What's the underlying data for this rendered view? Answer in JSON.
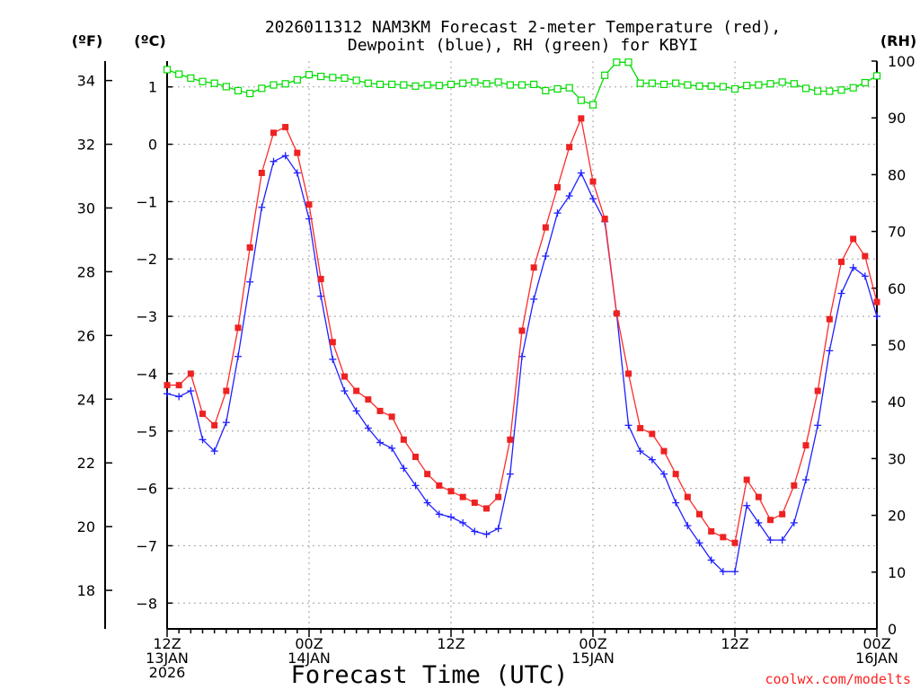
{
  "chart_data": {
    "type": "line",
    "title_line1": "2026011312 NAM3KM Forecast 2-meter Temperature (red),",
    "title_line2": "Dewpoint (blue), RH (green) for KBYI",
    "left_outer_unit": "(ºF)",
    "left_inner_unit": "(ºC)",
    "right_unit": "(RH)",
    "xlabel": "Forecast Time (UTC)",
    "credit": "coolwx.com/modelts",
    "x_hours": {
      "start": 0,
      "end": 60,
      "step": 1
    },
    "x_ticks": [
      {
        "hour": 0,
        "lines": [
          "12Z",
          "13JAN",
          "2026"
        ]
      },
      {
        "hour": 12,
        "lines": [
          "00Z",
          "14JAN"
        ]
      },
      {
        "hour": 24,
        "lines": [
          "12Z"
        ]
      },
      {
        "hour": 36,
        "lines": [
          "00Z",
          "15JAN"
        ]
      },
      {
        "hour": 48,
        "lines": [
          "12Z"
        ]
      },
      {
        "hour": 60,
        "lines": [
          "00Z",
          "16JAN"
        ]
      }
    ],
    "celsius_axis": {
      "min": -8.45,
      "max": 1.45,
      "ticks": [
        1,
        0,
        -1,
        -2,
        -3,
        -4,
        -5,
        -6,
        -7,
        -8
      ]
    },
    "fahrenheit_ticks": [
      34,
      32,
      30,
      28,
      26,
      24,
      22,
      20,
      18
    ],
    "rh_axis": {
      "min": 0,
      "max": 100,
      "ticks": [
        0,
        10,
        20,
        30,
        40,
        50,
        60,
        70,
        80,
        90,
        100
      ]
    },
    "colors": {
      "temperature": "#ff2a2a",
      "temperature_marker": "#ee2222",
      "dewpoint": "#2020ff",
      "rh": "#00dd00",
      "credit": "#ff2020"
    },
    "series": [
      {
        "name": "Temperature (°C)",
        "axis": "celsius",
        "values": [
          -4.2,
          -4.2,
          -4.0,
          -4.7,
          -4.9,
          -4.3,
          -3.2,
          -1.8,
          -0.5,
          0.2,
          0.3,
          -0.15,
          -1.05,
          -2.35,
          -3.45,
          -4.05,
          -4.3,
          -4.45,
          -4.65,
          -4.75,
          -5.15,
          -5.45,
          -5.75,
          -5.95,
          -6.05,
          -6.15,
          -6.25,
          -6.35,
          -6.15,
          -5.15,
          -3.25,
          -2.15,
          -1.45,
          -0.75,
          -0.05,
          0.45,
          -0.65,
          -1.3,
          -2.95,
          -4.0,
          -4.95,
          -5.05,
          -5.35,
          -5.75,
          -6.15,
          -6.45,
          -6.75,
          -6.85,
          -6.95,
          -5.85,
          -6.15,
          -6.55,
          -6.45,
          -5.95,
          -5.25,
          -4.3,
          -3.05,
          -2.05,
          -1.65,
          -1.95,
          -2.75
        ]
      },
      {
        "name": "Dewpoint (°C)",
        "axis": "celsius",
        "values": [
          -4.35,
          -4.4,
          -4.3,
          -5.15,
          -5.35,
          -4.85,
          -3.7,
          -2.4,
          -1.1,
          -0.3,
          -0.2,
          -0.5,
          -1.3,
          -2.65,
          -3.75,
          -4.3,
          -4.65,
          -4.95,
          -5.2,
          -5.3,
          -5.65,
          -5.95,
          -6.25,
          -6.45,
          -6.5,
          -6.6,
          -6.75,
          -6.8,
          -6.7,
          -5.75,
          -3.7,
          -2.7,
          -1.95,
          -1.2,
          -0.9,
          -0.5,
          -0.95,
          -1.35,
          -2.95,
          -4.9,
          -5.35,
          -5.5,
          -5.75,
          -6.25,
          -6.65,
          -6.95,
          -7.25,
          -7.45,
          -7.45,
          -6.3,
          -6.6,
          -6.9,
          -6.9,
          -6.6,
          -5.85,
          -4.9,
          -3.6,
          -2.6,
          -2.15,
          -2.3,
          -3.0
        ]
      },
      {
        "name": "Relative Humidity (%)",
        "axis": "rh",
        "values": [
          98.5,
          97.7,
          97.0,
          96.4,
          96.1,
          95.5,
          94.8,
          94.3,
          95.2,
          95.8,
          96.0,
          96.7,
          97.6,
          97.3,
          97.1,
          97.0,
          96.6,
          96.1,
          95.9,
          95.9,
          95.8,
          95.6,
          95.8,
          95.7,
          95.9,
          96.1,
          96.3,
          96.0,
          96.3,
          95.8,
          95.8,
          95.9,
          94.8,
          95.1,
          95.3,
          93.1,
          92.3,
          97.5,
          99.8,
          99.8,
          96.1,
          96.1,
          95.9,
          96.1,
          95.8,
          95.6,
          95.6,
          95.5,
          95.1,
          95.7,
          95.8,
          96.0,
          96.3,
          96.0,
          95.2,
          94.7,
          94.7,
          94.9,
          95.3,
          96.2,
          97.4
        ]
      }
    ]
  }
}
